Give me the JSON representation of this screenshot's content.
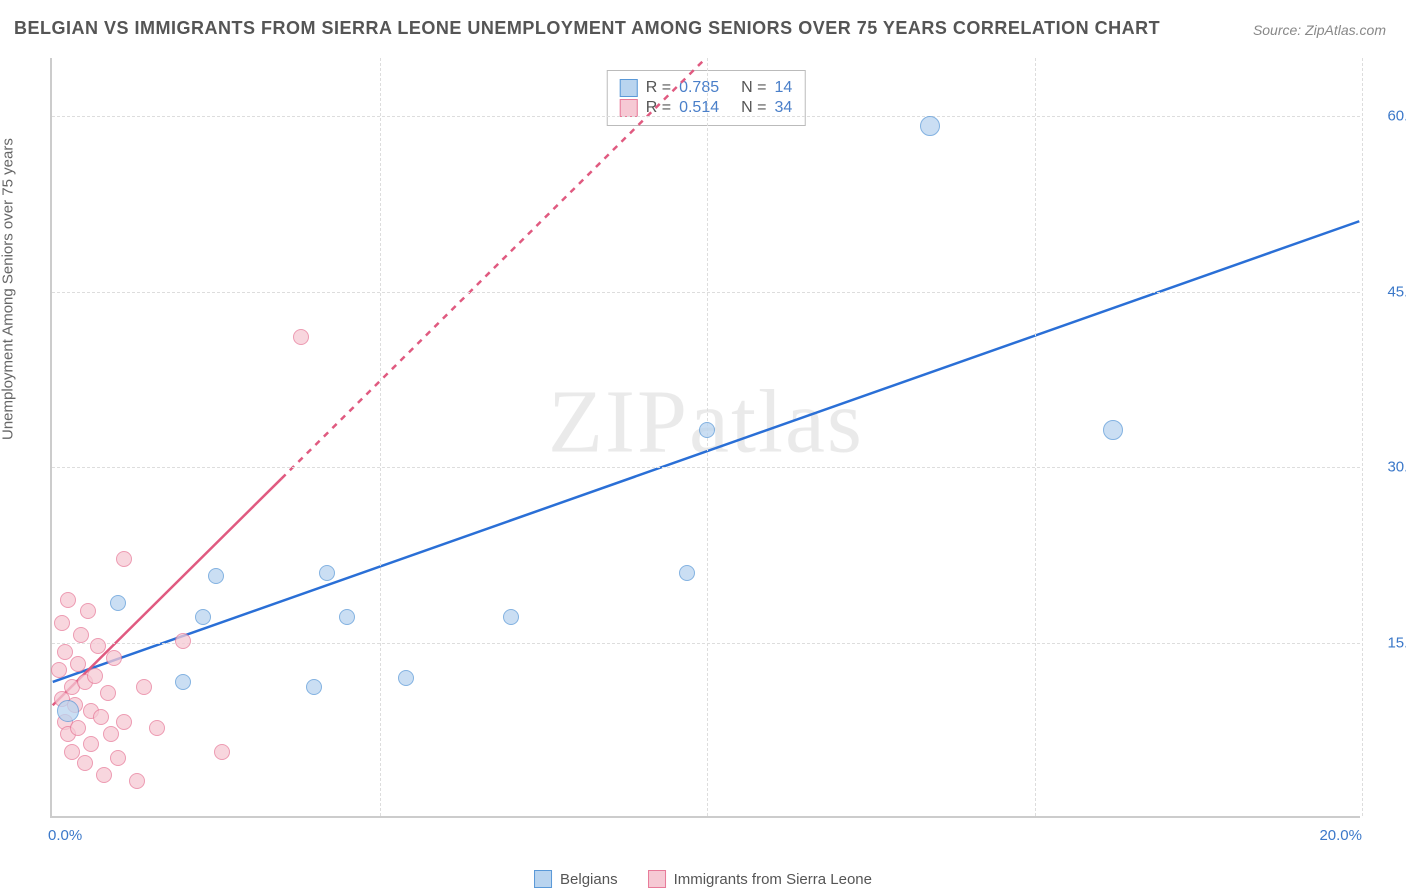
{
  "title": "BELGIAN VS IMMIGRANTS FROM SIERRA LEONE UNEMPLOYMENT AMONG SENIORS OVER 75 YEARS CORRELATION CHART",
  "source": "Source: ZipAtlas.com",
  "ylabel": "Unemployment Among Seniors over 75 years",
  "watermark": "ZIPatlas",
  "colors": {
    "series_a_fill": "#b9d4ef",
    "series_a_stroke": "#5a99d8",
    "series_a_line": "#2a6fd6",
    "series_b_fill": "#f6c9d4",
    "series_b_stroke": "#e77a99",
    "series_b_line": "#e05a80",
    "grid": "#dddddd",
    "axis": "#cccccc",
    "tick_a": "#3b78c9",
    "tick_b": "#3b78c9",
    "text": "#555555",
    "value": "#4a7fc9"
  },
  "axes": {
    "x_min": 0.0,
    "x_max": 20.0,
    "y_min": 0.0,
    "y_max": 65.0,
    "x_ticks": [
      0.0,
      20.0
    ],
    "y_ticks": [
      15.0,
      30.0,
      45.0,
      60.0
    ],
    "x_grid": [
      5.0,
      10.0,
      15.0,
      20.0
    ],
    "y_grid": [
      15.0,
      30.0,
      45.0,
      60.0
    ],
    "tick_format": "%"
  },
  "r_legend": {
    "rows": [
      {
        "swatch": "a",
        "r": "0.785",
        "n": "14"
      },
      {
        "swatch": "b",
        "r": "0.514",
        "n": "34"
      }
    ]
  },
  "bottom_legend": {
    "items": [
      {
        "swatch": "a",
        "label": "Belgians"
      },
      {
        "swatch": "b",
        "label": "Immigrants from Sierra Leone"
      }
    ]
  },
  "point_radius": 8,
  "point_radius_large": 11,
  "series_a": {
    "trend": {
      "x1": 0.0,
      "y1": 11.5,
      "x2": 20.0,
      "y2": 51.0,
      "dashed_after_x": null
    },
    "points": [
      {
        "x": 0.25,
        "y": 9.0,
        "r": 11
      },
      {
        "x": 1.0,
        "y": 18.2
      },
      {
        "x": 2.0,
        "y": 11.5
      },
      {
        "x": 2.3,
        "y": 17.0
      },
      {
        "x": 2.5,
        "y": 20.5
      },
      {
        "x": 4.0,
        "y": 11.0
      },
      {
        "x": 4.2,
        "y": 20.8
      },
      {
        "x": 4.5,
        "y": 17.0
      },
      {
        "x": 5.4,
        "y": 11.8
      },
      {
        "x": 7.0,
        "y": 17.0
      },
      {
        "x": 9.7,
        "y": 20.8
      },
      {
        "x": 10.0,
        "y": 33.0
      },
      {
        "x": 13.4,
        "y": 59.0,
        "r": 10
      },
      {
        "x": 16.2,
        "y": 33.0,
        "r": 10
      }
    ]
  },
  "series_b": {
    "trend": {
      "x1": 0.0,
      "y1": 9.5,
      "x2": 10.0,
      "y2": 65.0,
      "dashed_after_x": 3.5
    },
    "points": [
      {
        "x": 0.1,
        "y": 12.5
      },
      {
        "x": 0.15,
        "y": 10.0
      },
      {
        "x": 0.15,
        "y": 16.5
      },
      {
        "x": 0.2,
        "y": 14.0
      },
      {
        "x": 0.2,
        "y": 8.0
      },
      {
        "x": 0.25,
        "y": 18.5
      },
      {
        "x": 0.25,
        "y": 7.0
      },
      {
        "x": 0.3,
        "y": 11.0
      },
      {
        "x": 0.3,
        "y": 5.5
      },
      {
        "x": 0.35,
        "y": 9.5
      },
      {
        "x": 0.4,
        "y": 13.0
      },
      {
        "x": 0.4,
        "y": 7.5
      },
      {
        "x": 0.45,
        "y": 15.5
      },
      {
        "x": 0.5,
        "y": 11.5
      },
      {
        "x": 0.5,
        "y": 4.5
      },
      {
        "x": 0.55,
        "y": 17.5
      },
      {
        "x": 0.6,
        "y": 9.0
      },
      {
        "x": 0.6,
        "y": 6.2
      },
      {
        "x": 0.65,
        "y": 12.0
      },
      {
        "x": 0.7,
        "y": 14.5
      },
      {
        "x": 0.75,
        "y": 8.5
      },
      {
        "x": 0.8,
        "y": 3.5
      },
      {
        "x": 0.85,
        "y": 10.5
      },
      {
        "x": 0.9,
        "y": 7.0
      },
      {
        "x": 0.95,
        "y": 13.5
      },
      {
        "x": 1.0,
        "y": 5.0
      },
      {
        "x": 1.1,
        "y": 22.0
      },
      {
        "x": 1.1,
        "y": 8.0
      },
      {
        "x": 1.3,
        "y": 3.0
      },
      {
        "x": 1.4,
        "y": 11.0
      },
      {
        "x": 1.6,
        "y": 7.5
      },
      {
        "x": 2.0,
        "y": 15.0
      },
      {
        "x": 2.6,
        "y": 5.5
      },
      {
        "x": 3.8,
        "y": 41.0
      }
    ]
  }
}
